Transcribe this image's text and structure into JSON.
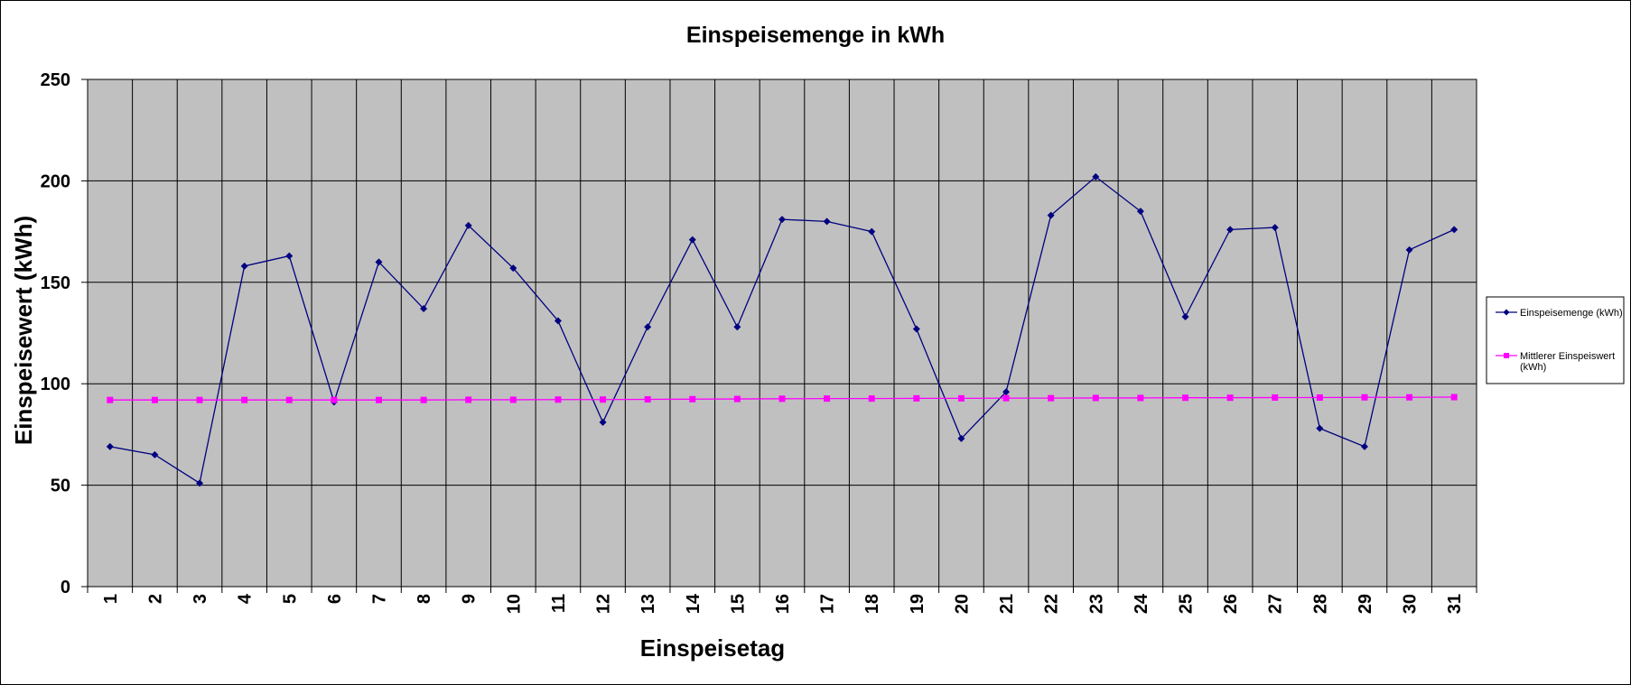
{
  "chart_data": {
    "type": "line",
    "title": "Einspeisemenge in kWh",
    "xlabel": "Einspeisetag",
    "ylabel": "Einspeisewert  (kWh)",
    "ylim": [
      0,
      250
    ],
    "yticks": [
      0,
      50,
      100,
      150,
      200,
      250
    ],
    "grid": true,
    "legend_position": "right",
    "x": [
      1,
      2,
      3,
      4,
      5,
      6,
      7,
      8,
      9,
      10,
      11,
      12,
      13,
      14,
      15,
      16,
      17,
      18,
      19,
      20,
      21,
      22,
      23,
      24,
      25,
      26,
      27,
      28,
      29,
      30,
      31
    ],
    "series": [
      {
        "name": "Einspeisemenge (kWh)",
        "legend_lines": [
          "Einspeisemenge (kWh)"
        ],
        "color": "#000080",
        "marker": "diamond",
        "values": [
          69,
          65,
          51,
          158,
          163,
          91,
          160,
          137,
          178,
          157,
          131,
          81,
          128,
          171,
          128,
          181,
          180,
          175,
          127,
          73,
          96,
          183,
          202,
          185,
          133,
          176,
          177,
          78,
          69,
          166,
          176
        ]
      },
      {
        "name": "Mittlerer Einspeiswert (kWh)",
        "legend_lines": [
          "Mittlerer Einspeiswert",
          "(kWh)"
        ],
        "color": "#FF00FF",
        "marker": "square",
        "values": [
          92,
          92,
          92,
          92,
          92,
          92,
          92,
          92,
          92.1,
          92.1,
          92.2,
          92.2,
          92.3,
          92.4,
          92.5,
          92.6,
          92.7,
          92.7,
          92.8,
          92.8,
          92.9,
          92.9,
          93,
          93,
          93.1,
          93.1,
          93.2,
          93.2,
          93.3,
          93.3,
          93.4
        ]
      }
    ]
  },
  "colors": {
    "plot_background": "#C0C0C0",
    "gridline": "#000000"
  }
}
